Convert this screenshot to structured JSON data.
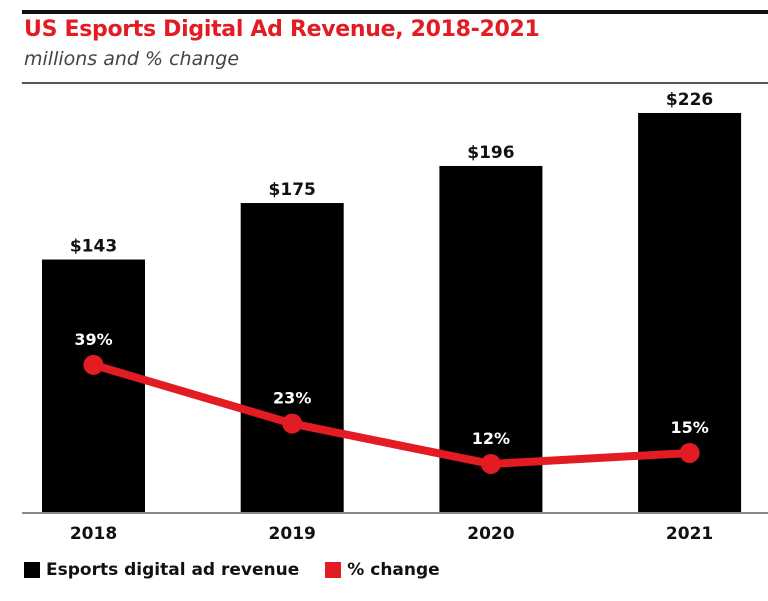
{
  "chart_data": {
    "type": "bar",
    "title": "US Esports Digital Ad Revenue, 2018-2021",
    "subtitle": "millions and % change",
    "categories": [
      "2018",
      "2019",
      "2020",
      "2021"
    ],
    "series": [
      {
        "name": "Esports digital ad revenue",
        "type": "bar",
        "color": "#000000",
        "values": [
          143,
          175,
          196,
          226
        ],
        "labels": [
          "$143",
          "$175",
          "$196",
          "$226"
        ]
      },
      {
        "name": "% change",
        "type": "line",
        "color": "#e31b23",
        "values": [
          39,
          23,
          12,
          15
        ],
        "labels": [
          "39%",
          "23%",
          "12%",
          "15%"
        ]
      }
    ],
    "xlabel": "",
    "ylabel": "",
    "ylim": [
      0,
      226
    ],
    "grid": false,
    "legend": "bottom-left"
  },
  "legend": {
    "items": [
      {
        "label": "Esports digital ad revenue",
        "color": "#000000"
      },
      {
        "label": "% change",
        "color": "#e31b23"
      }
    ]
  }
}
